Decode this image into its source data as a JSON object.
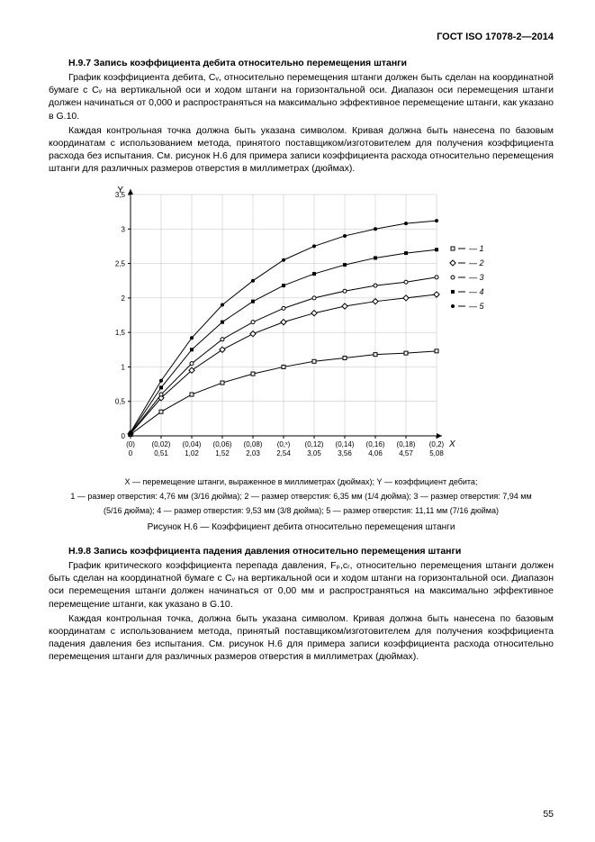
{
  "header": {
    "doc_id": "ГОСТ ISO 17078-2—2014"
  },
  "section_h97": {
    "title": "H.9.7 Запись коэффициента дебита относительно перемещения штанги",
    "p1": "График коэффициента дебита, Cᵥ, относительно перемещения штанги должен быть сделан на координатной бумаге с Cᵥ на вертикальной оси и ходом штанги на горизонтальной оси. Диапазон оси перемещения штанги должен начинаться от 0,000 и распространяться на максимально эффективное перемещение штанги, как указано в G.10.",
    "p2": "Каждая контрольная точка должна быть указана символом. Кривая должна быть нанесена по базовым координатам с использованием метода, принятого поставщиком/изготовителем для получения коэффициента расхода без испытания. См. рисунок H.6 для примера записи коэффициента расхода относительно перемещения штанги для различных размеров отверстия в миллиметрах (дюймах)."
  },
  "chart": {
    "type": "line",
    "x_axis_label_rows": [
      [
        "(0)",
        "(0,02)",
        "(0,04)",
        "(0,06)",
        "(0,08)",
        "(0,ˣ)",
        "(0,12)",
        "(0,14)",
        "(0,16)",
        "(0,18)",
        "(0,2)"
      ],
      [
        "0",
        "0,51",
        "1,02",
        "1,52",
        "2,03",
        "2,54",
        "3,05",
        "3,56",
        "4,06",
        "4,57",
        "5,08"
      ]
    ],
    "x_tail_label": "X",
    "y_label": "Y",
    "y_ticks": [
      "0",
      "0,5",
      "1",
      "1,5",
      "2",
      "2,5",
      "3",
      "3,5"
    ],
    "ylim": [
      0,
      3.5
    ],
    "xlim": [
      0,
      10
    ],
    "series": [
      {
        "id": 1,
        "marker": "square-open",
        "data": [
          [
            0,
            0.02
          ],
          [
            1,
            0.35
          ],
          [
            2,
            0.6
          ],
          [
            3,
            0.77
          ],
          [
            4,
            0.9
          ],
          [
            5,
            1.0
          ],
          [
            6,
            1.08
          ],
          [
            7,
            1.13
          ],
          [
            8,
            1.18
          ],
          [
            9,
            1.2
          ],
          [
            10,
            1.23
          ]
        ]
      },
      {
        "id": 2,
        "marker": "diamond-open",
        "data": [
          [
            0,
            0.03
          ],
          [
            1,
            0.55
          ],
          [
            2,
            0.95
          ],
          [
            3,
            1.25
          ],
          [
            4,
            1.48
          ],
          [
            5,
            1.65
          ],
          [
            6,
            1.78
          ],
          [
            7,
            1.88
          ],
          [
            8,
            1.95
          ],
          [
            9,
            2.0
          ],
          [
            10,
            2.05
          ]
        ]
      },
      {
        "id": 3,
        "marker": "circle-open",
        "data": [
          [
            0,
            0.03
          ],
          [
            1,
            0.6
          ],
          [
            2,
            1.05
          ],
          [
            3,
            1.4
          ],
          [
            4,
            1.65
          ],
          [
            5,
            1.85
          ],
          [
            6,
            2.0
          ],
          [
            7,
            2.1
          ],
          [
            8,
            2.18
          ],
          [
            9,
            2.23
          ],
          [
            10,
            2.3
          ]
        ]
      },
      {
        "id": 4,
        "marker": "square-filled",
        "data": [
          [
            0,
            0.04
          ],
          [
            1,
            0.7
          ],
          [
            2,
            1.25
          ],
          [
            3,
            1.65
          ],
          [
            4,
            1.95
          ],
          [
            5,
            2.18
          ],
          [
            6,
            2.35
          ],
          [
            7,
            2.48
          ],
          [
            8,
            2.58
          ],
          [
            9,
            2.65
          ],
          [
            10,
            2.7
          ]
        ]
      },
      {
        "id": 5,
        "marker": "circle-filled",
        "data": [
          [
            0,
            0.05
          ],
          [
            1,
            0.8
          ],
          [
            2,
            1.42
          ],
          [
            3,
            1.9
          ],
          [
            4,
            2.25
          ],
          [
            5,
            2.55
          ],
          [
            6,
            2.75
          ],
          [
            7,
            2.9
          ],
          [
            8,
            3.0
          ],
          [
            9,
            3.08
          ],
          [
            10,
            3.12
          ]
        ]
      }
    ],
    "legend_labels": [
      "— 1",
      "— 2",
      "— 3",
      "— 4",
      "— 5"
    ],
    "plot": {
      "background": "#ffffff",
      "axis_color": "#000000",
      "grid_color": "#bfbfbf",
      "line_color": "#000000",
      "line_width": 1,
      "marker_size": 4,
      "tick_fontsize": 8,
      "label_fontsize": 10
    }
  },
  "chart_caption_lines": {
    "l1": "X — перемещение штанги, выраженное в миллиметрах (дюймах); Y — коэффициент дебита;",
    "l2": "1 — размер отверстия: 4,76 мм (3/16 дюйма); 2 — размер отверстия: 6,35 мм (1/4 дюйма); 3 — размер отверстия: 7,94 мм",
    "l3": "(5/16 дюйма); 4 — размер отверстия: 9,53 мм (3/8 дюйма); 5 — размер отверстия: 11,11 мм (7/16 дюйма)"
  },
  "figure_caption": "Рисунок H.6 — Коэффициент дебита относительно перемещения штанги",
  "section_h98": {
    "title": "H.9.8 Запись коэффициента падения давления относительно перемещения штанги",
    "p1": "График критического коэффициента перепада давления, Fₚ,cᵣ, относительно перемещения штанги должен быть сделан на координатной бумаге с Cᵥ на вертикальной оси и ходом штанги на горизонтальной оси. Диапазон оси перемещения штанги должен начинаться от 0,00 мм и распространяться на максимально эффективное перемещение штанги, как указано в G.10.",
    "p2": "Каждая контрольная точка, должна быть указана символом. Кривая должна быть нанесена по базовым координатам с использованием метода, принятый поставщиком/изготовителем для получения коэффициента падения давления без испытания. См. рисунок H.6 для примера записи коэффициента расхода относительно перемещения штанги для различных размеров отверстия в миллиметрах (дюймах)."
  },
  "page_number": "55"
}
